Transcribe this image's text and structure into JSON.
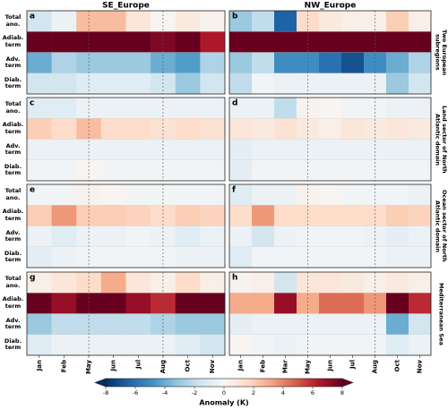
{
  "chart_data": [
    {
      "type": "heatmap",
      "panel": "a",
      "title": "SE_Europe",
      "row_labels": [
        "Total ano.",
        "Adiab. term",
        "Adv. term",
        "Diab. term"
      ],
      "values": [
        [
          -1.5,
          -0.5,
          2.5,
          2.5,
          1,
          0.2,
          0.8,
          0.3
        ],
        [
          8,
          8,
          8,
          8,
          8,
          7.5,
          8,
          6.5
        ],
        [
          -4,
          -2.5,
          -3,
          -3,
          -3,
          -4,
          -4.5,
          -2.5
        ],
        [
          -1.5,
          -1.5,
          -1,
          -1,
          -1,
          -1.5,
          -3,
          -1.5
        ]
      ]
    },
    {
      "type": "heatmap",
      "panel": "b",
      "title": "NW_Europe",
      "region": "Two European subregions",
      "values": [
        [
          -3,
          -2,
          -6.5,
          1.5,
          0.8,
          0.5,
          0.5,
          2,
          0.5
        ],
        [
          8,
          8,
          8,
          8,
          8,
          8,
          8,
          8,
          8
        ],
        [
          -3,
          -2,
          -5,
          -5,
          -6,
          -7,
          -5,
          -4,
          -2.5
        ],
        [
          -2,
          -0.3,
          -0.5,
          -0.5,
          -0.5,
          -0.5,
          -0.5,
          -3,
          -1.5
        ]
      ]
    },
    {
      "type": "heatmap",
      "panel": "c",
      "row_labels": [
        "Total ano.",
        "Adiab. term",
        "Adv. term",
        "Diab. term"
      ],
      "values": [
        [
          -1,
          -1,
          -0.5,
          -0.5,
          -0.5,
          -0.5,
          -0.5,
          -0.5
        ],
        [
          2,
          1.5,
          2.5,
          1.5,
          1.5,
          1.2,
          1.5,
          1.2
        ],
        [
          -0.5,
          -0.5,
          -0.5,
          -0.5,
          -0.5,
          -0.5,
          -0.5,
          -0.5
        ],
        [
          -0.3,
          -0.3,
          0.2,
          -0.2,
          -0.2,
          -0.2,
          -0.3,
          -0.3
        ]
      ]
    },
    {
      "type": "heatmap",
      "panel": "d",
      "region": "Land sector of North Atlantic domain",
      "values": [
        [
          -0.5,
          -0.5,
          -2,
          0.3,
          0.2,
          -0.3,
          -0.3,
          -0.5,
          -0.5
        ],
        [
          1,
          0.8,
          1.2,
          0.8,
          0.5,
          1,
          0.8,
          1,
          0.8
        ],
        [
          -0.8,
          -0.5,
          -0.5,
          -0.5,
          -0.5,
          -0.5,
          -0.5,
          -0.5,
          -0.5
        ],
        [
          -0.8,
          -0.3,
          -0.3,
          -0.3,
          -0.3,
          -0.3,
          -0.3,
          -0.3,
          -0.3
        ]
      ]
    },
    {
      "type": "heatmap",
      "panel": "e",
      "row_labels": [
        "Total ano.",
        "Adiab. term",
        "Adv. term",
        "Diab. term"
      ],
      "values": [
        [
          -0.3,
          -0.3,
          0.3,
          0.2,
          -0.2,
          -0.2,
          -0.3,
          -0.3
        ],
        [
          2,
          3.5,
          2,
          2,
          1.8,
          1.5,
          2,
          1.8
        ],
        [
          -0.5,
          -1,
          -0.5,
          -0.5,
          -0.3,
          -0.5,
          -1,
          -0.5
        ],
        [
          -0.8,
          -0.5,
          -0.3,
          -0.3,
          -0.3,
          -0.3,
          -0.5,
          -0.5
        ]
      ]
    },
    {
      "type": "heatmap",
      "panel": "f",
      "region": "Ocean sector of North Atlantic domain",
      "values": [
        [
          -1,
          -0.5,
          -0.5,
          0.3,
          0.2,
          -0.2,
          -0.3,
          -0.3,
          -0.5
        ],
        [
          1.5,
          3.5,
          1.5,
          1.5,
          1.5,
          1.5,
          1.5,
          2,
          1.8
        ],
        [
          -0.5,
          -1.5,
          -0.5,
          -0.3,
          -0.3,
          -0.3,
          -0.5,
          -0.8,
          -0.5
        ],
        [
          -1,
          -0.3,
          -0.3,
          -0.3,
          -0.3,
          -0.3,
          -0.3,
          -0.5,
          -0.5
        ]
      ]
    },
    {
      "type": "heatmap",
      "panel": "g",
      "row_labels": [
        "Total ano.",
        "Adiab. term",
        "Adv. term",
        "Diab. term"
      ],
      "categories": [
        "Jan",
        "Feb",
        "May",
        "Jun",
        "Jul",
        "Aug",
        "Oct",
        "Nov"
      ],
      "values": [
        [
          0.5,
          1,
          1.5,
          3,
          1,
          0.5,
          1.5,
          0.5
        ],
        [
          8,
          7,
          8,
          8,
          7,
          6,
          8,
          8
        ],
        [
          -3,
          -2,
          -2,
          -2,
          -2,
          -2.5,
          -3,
          -3
        ],
        [
          -1,
          -0.5,
          -0.5,
          -0.5,
          -0.5,
          -0.5,
          -1,
          -1.5
        ]
      ]
    },
    {
      "type": "heatmap",
      "panel": "h",
      "region": "Mediterranean Sea",
      "categories": [
        "Jan",
        "Feb",
        "Mar",
        "May",
        "Jun",
        "Jul",
        "Aug",
        "Oct",
        "Nov"
      ],
      "values": [
        [
          0.3,
          0.5,
          -1.5,
          1,
          1,
          0.8,
          0.5,
          0.8,
          0.5
        ],
        [
          3,
          3,
          7,
          3,
          4.5,
          4.5,
          3.5,
          8,
          6
        ],
        [
          -0.8,
          -0.5,
          -0.5,
          -0.5,
          -0.5,
          -0.5,
          -0.5,
          -4,
          -1.5
        ],
        [
          0.2,
          -0.3,
          -0.5,
          -0.3,
          -0.3,
          -0.3,
          -0.3,
          -1,
          -0.5
        ]
      ]
    }
  ],
  "colorbar": {
    "label": "Anomaly (K)",
    "cmap": "RdBu_r",
    "lim": [
      -8,
      8
    ],
    "ticks": [
      -8,
      -6,
      -4,
      -2,
      0,
      2,
      4,
      6,
      8
    ]
  }
}
